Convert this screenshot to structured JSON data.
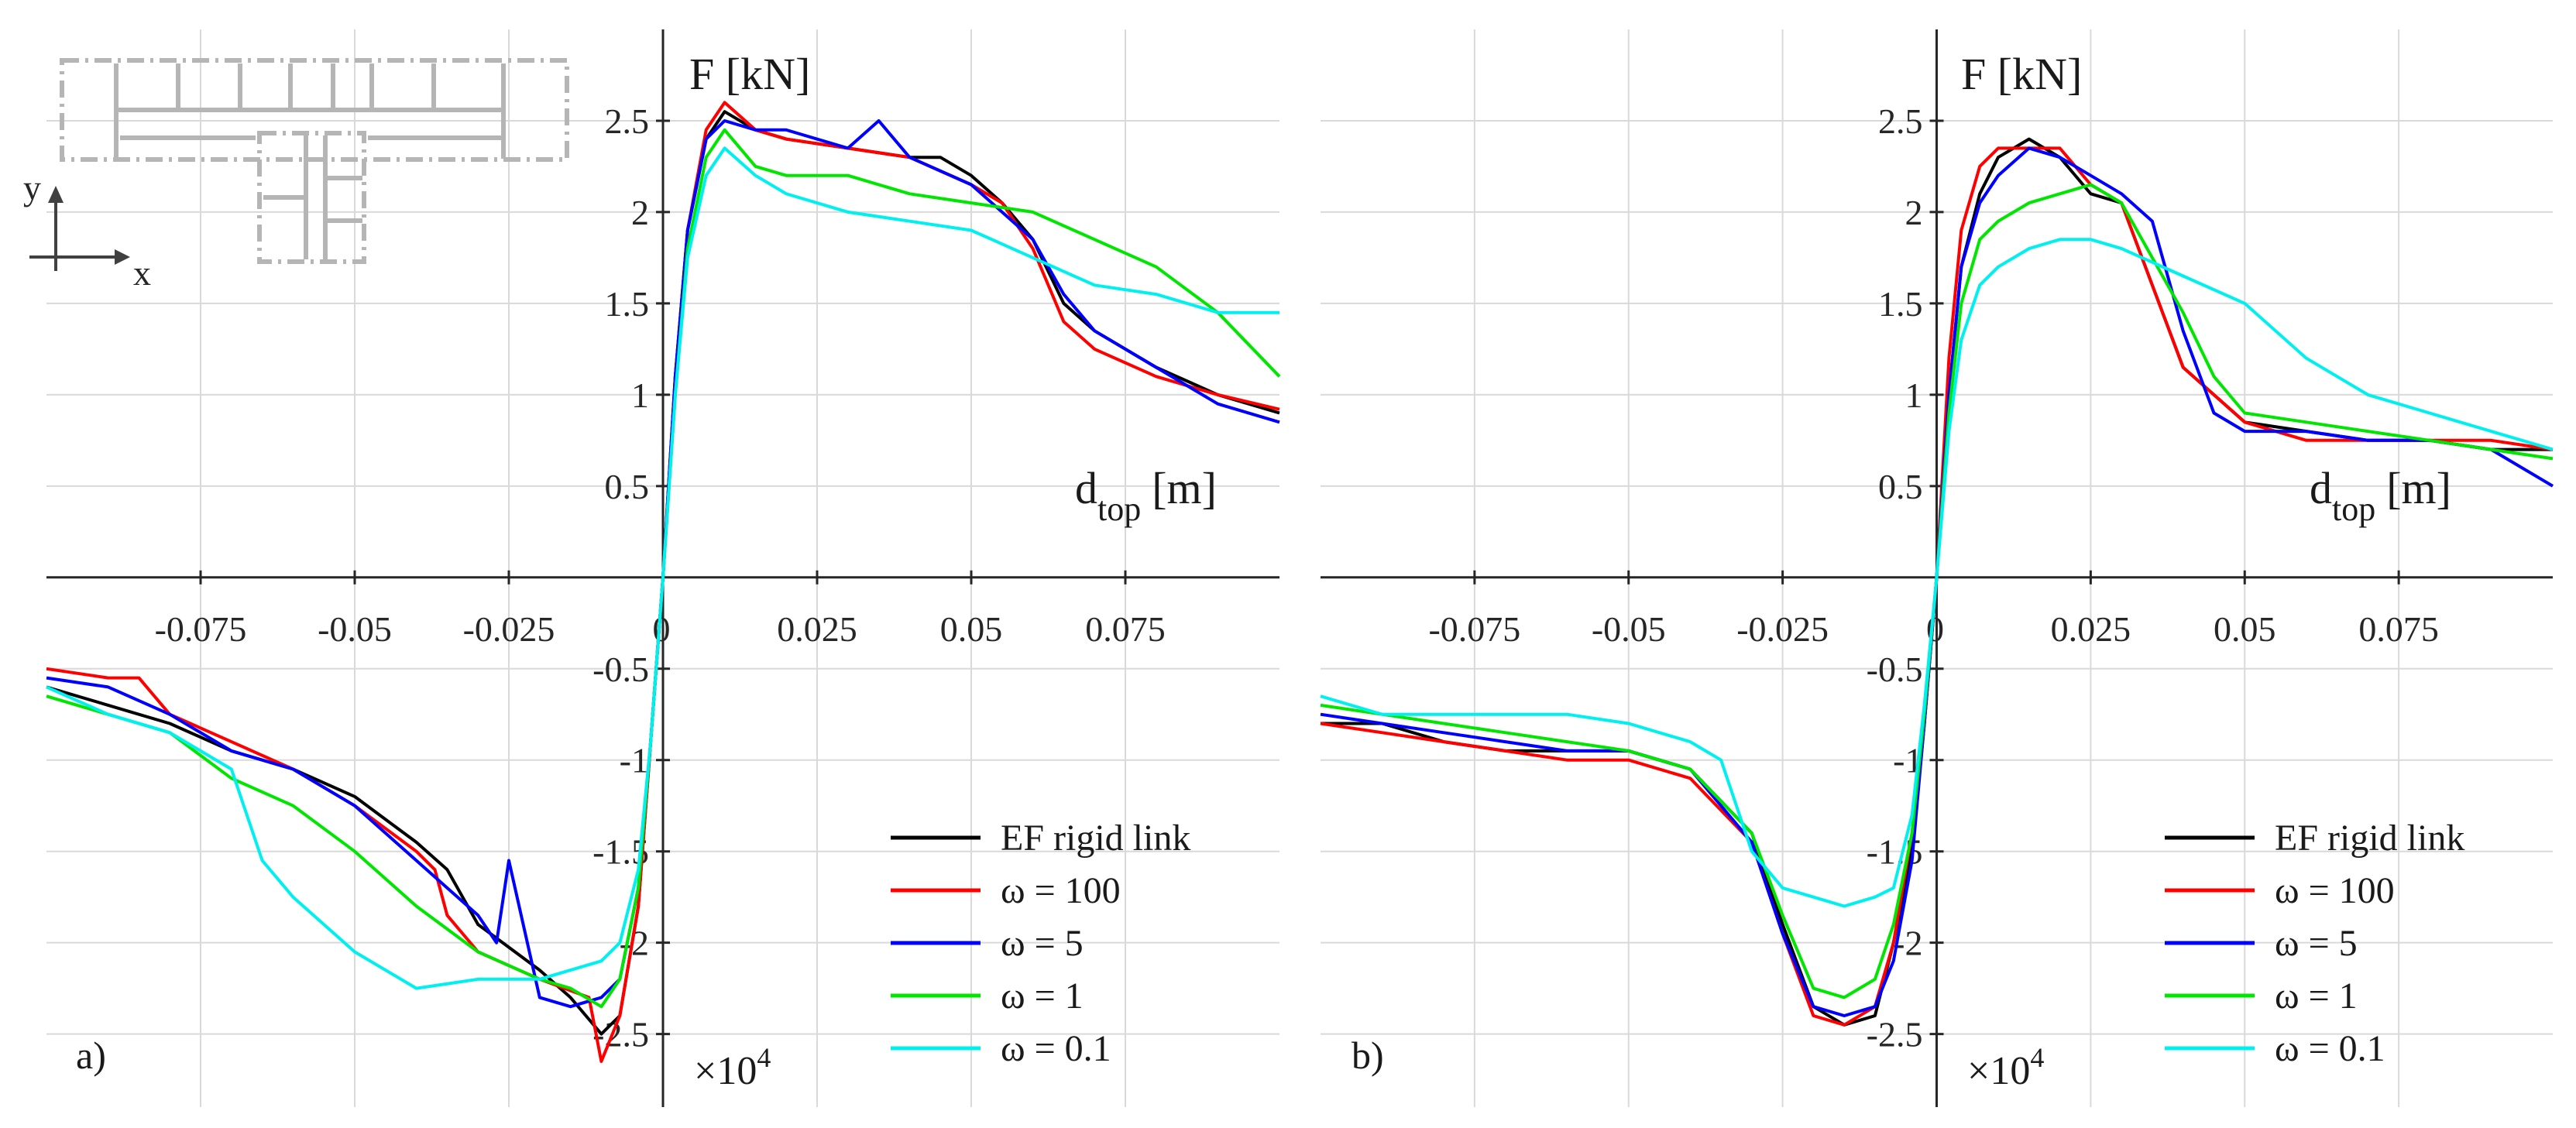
{
  "chart_data": [
    {
      "type": "line",
      "panel_label": "a)",
      "ylabel": "F [kN]",
      "xlabel_main": "d",
      "xlabel_sub": "top",
      "xlabel_unit": "[m]",
      "y_multiplier_text": "×10",
      "y_multiplier_exp": "4",
      "xlim": [
        -0.1,
        0.1
      ],
      "ylim": [
        -2.9,
        3.0
      ],
      "x_ticks": [
        -0.075,
        -0.05,
        -0.025,
        0,
        0.025,
        0.05,
        0.075
      ],
      "x_tick_labels": [
        "-0.075",
        "-0.05",
        "-0.025",
        "0",
        "0.025",
        "0.05",
        "0.075"
      ],
      "y_ticks": [
        -2.5,
        -2,
        -1.5,
        -1,
        -0.5,
        0.5,
        1,
        1.5,
        2,
        2.5
      ],
      "y_tick_labels": [
        "-2.5",
        "-2",
        "-1.5",
        "-1",
        "-0.5",
        "0.5",
        "1",
        "1.5",
        "2",
        "2.5"
      ],
      "inset_axis_labels": {
        "x": "x",
        "y": "y"
      },
      "series": [
        {
          "name": "EF rigid link",
          "color": "#000000",
          "x": [
            -0.1,
            -0.09,
            -0.08,
            -0.07,
            -0.06,
            -0.05,
            -0.04,
            -0.035,
            -0.03,
            -0.02,
            -0.015,
            -0.01,
            -0.007,
            -0.004,
            -0.002,
            0,
            0.002,
            0.004,
            0.007,
            0.01,
            0.015,
            0.02,
            0.03,
            0.04,
            0.045,
            0.05,
            0.055,
            0.06,
            0.065,
            0.07,
            0.08,
            0.09,
            0.1
          ],
          "y": [
            -0.6,
            -0.7,
            -0.8,
            -0.95,
            -1.05,
            -1.2,
            -1.45,
            -1.6,
            -1.9,
            -2.15,
            -2.3,
            -2.5,
            -2.4,
            -1.8,
            -0.9,
            0,
            1.1,
            1.9,
            2.4,
            2.55,
            2.45,
            2.4,
            2.35,
            2.3,
            2.3,
            2.2,
            2.05,
            1.85,
            1.5,
            1.35,
            1.15,
            1.0,
            0.9
          ]
        },
        {
          "name": "ω = 100",
          "color": "#ff0000",
          "x": [
            -0.1,
            -0.09,
            -0.085,
            -0.08,
            -0.07,
            -0.06,
            -0.05,
            -0.04,
            -0.037,
            -0.035,
            -0.03,
            -0.02,
            -0.012,
            -0.01,
            -0.007,
            -0.004,
            -0.002,
            0,
            0.002,
            0.004,
            0.007,
            0.01,
            0.015,
            0.02,
            0.03,
            0.04,
            0.05,
            0.055,
            0.06,
            0.065,
            0.07,
            0.08,
            0.09,
            0.1
          ],
          "y": [
            -0.5,
            -0.55,
            -0.55,
            -0.75,
            -0.9,
            -1.05,
            -1.25,
            -1.5,
            -1.6,
            -1.85,
            -2.05,
            -2.2,
            -2.3,
            -2.65,
            -2.4,
            -1.8,
            -0.9,
            0,
            1.1,
            1.9,
            2.45,
            2.6,
            2.45,
            2.4,
            2.35,
            2.3,
            2.15,
            2.05,
            1.8,
            1.4,
            1.25,
            1.1,
            1.0,
            0.92
          ]
        },
        {
          "name": "ω = 5",
          "color": "#0000ff",
          "x": [
            -0.1,
            -0.09,
            -0.08,
            -0.07,
            -0.06,
            -0.05,
            -0.04,
            -0.03,
            -0.027,
            -0.025,
            -0.02,
            -0.015,
            -0.01,
            -0.007,
            -0.004,
            -0.002,
            0,
            0.002,
            0.004,
            0.007,
            0.01,
            0.015,
            0.02,
            0.03,
            0.035,
            0.04,
            0.05,
            0.055,
            0.06,
            0.065,
            0.07,
            0.08,
            0.09,
            0.1
          ],
          "y": [
            -0.55,
            -0.6,
            -0.75,
            -0.95,
            -1.05,
            -1.25,
            -1.55,
            -1.85,
            -2.0,
            -1.55,
            -2.3,
            -2.35,
            -2.3,
            -2.2,
            -1.7,
            -0.9,
            0,
            1.1,
            1.9,
            2.4,
            2.5,
            2.45,
            2.45,
            2.35,
            2.5,
            2.3,
            2.15,
            2.0,
            1.85,
            1.55,
            1.35,
            1.15,
            0.95,
            0.85
          ]
        },
        {
          "name": "ω = 1",
          "color": "#00e600",
          "x": [
            -0.1,
            -0.09,
            -0.08,
            -0.07,
            -0.06,
            -0.05,
            -0.04,
            -0.03,
            -0.02,
            -0.015,
            -0.01,
            -0.007,
            -0.004,
            -0.002,
            0,
            0.002,
            0.004,
            0.007,
            0.01,
            0.015,
            0.02,
            0.03,
            0.04,
            0.05,
            0.06,
            0.07,
            0.08,
            0.09,
            0.1
          ],
          "y": [
            -0.65,
            -0.75,
            -0.85,
            -1.1,
            -1.25,
            -1.5,
            -1.8,
            -2.05,
            -2.2,
            -2.25,
            -2.35,
            -2.2,
            -1.7,
            -0.9,
            0,
            1.0,
            1.8,
            2.3,
            2.45,
            2.25,
            2.2,
            2.2,
            2.1,
            2.05,
            2.0,
            1.85,
            1.7,
            1.45,
            1.1
          ]
        },
        {
          "name": "ω = 0.1",
          "color": "#00f0f0",
          "x": [
            -0.1,
            -0.09,
            -0.08,
            -0.07,
            -0.065,
            -0.06,
            -0.05,
            -0.04,
            -0.03,
            -0.02,
            -0.015,
            -0.01,
            -0.007,
            -0.004,
            -0.002,
            0,
            0.002,
            0.004,
            0.007,
            0.01,
            0.015,
            0.02,
            0.03,
            0.04,
            0.05,
            0.06,
            0.07,
            0.08,
            0.09,
            0.1
          ],
          "y": [
            -0.6,
            -0.75,
            -0.85,
            -1.05,
            -1.55,
            -1.75,
            -2.05,
            -2.25,
            -2.2,
            -2.2,
            -2.15,
            -2.1,
            -2.0,
            -1.6,
            -0.9,
            0,
            1.0,
            1.75,
            2.2,
            2.35,
            2.2,
            2.1,
            2.0,
            1.95,
            1.9,
            1.75,
            1.6,
            1.55,
            1.45,
            1.45
          ]
        }
      ]
    },
    {
      "type": "line",
      "panel_label": "b)",
      "ylabel": "F [kN]",
      "xlabel_main": "d",
      "xlabel_sub": "top",
      "xlabel_unit": "[m]",
      "y_multiplier_text": "×10",
      "y_multiplier_exp": "4",
      "xlim": [
        -0.1,
        0.1
      ],
      "ylim": [
        -2.9,
        3.0
      ],
      "x_ticks": [
        -0.075,
        -0.05,
        -0.025,
        0,
        0.025,
        0.05,
        0.075
      ],
      "x_tick_labels": [
        "-0.075",
        "-0.05",
        "-0.025",
        "0",
        "0.025",
        "0.05",
        "0.075"
      ],
      "y_ticks": [
        -2.5,
        -2,
        -1.5,
        -1,
        -0.5,
        0.5,
        1,
        1.5,
        2,
        2.5
      ],
      "y_tick_labels": [
        "-2.5",
        "-2",
        "-1.5",
        "-1",
        "-0.5",
        "0.5",
        "1",
        "1.5",
        "2",
        "2.5"
      ],
      "series": [
        {
          "name": "EF rigid link",
          "color": "#000000",
          "x": [
            -0.1,
            -0.09,
            -0.08,
            -0.07,
            -0.06,
            -0.05,
            -0.04,
            -0.03,
            -0.025,
            -0.02,
            -0.015,
            -0.01,
            -0.007,
            -0.004,
            -0.002,
            0,
            0.002,
            0.004,
            0.007,
            0.01,
            0.015,
            0.02,
            0.025,
            0.03,
            0.035,
            0.04,
            0.05,
            0.06,
            0.07,
            0.08,
            0.09,
            0.1
          ],
          "y": [
            -0.8,
            -0.8,
            -0.9,
            -0.95,
            -0.95,
            -0.95,
            -1.05,
            -1.4,
            -1.9,
            -2.35,
            -2.45,
            -2.4,
            -2.0,
            -1.5,
            -0.8,
            0,
            1.0,
            1.7,
            2.1,
            2.3,
            2.4,
            2.3,
            2.1,
            2.05,
            1.6,
            1.15,
            0.85,
            0.8,
            0.75,
            0.75,
            0.7,
            0.7
          ]
        },
        {
          "name": "ω = 100",
          "color": "#ff0000",
          "x": [
            -0.1,
            -0.09,
            -0.08,
            -0.07,
            -0.06,
            -0.05,
            -0.04,
            -0.03,
            -0.025,
            -0.02,
            -0.015,
            -0.01,
            -0.007,
            -0.004,
            -0.002,
            0,
            0.002,
            0.004,
            0.007,
            0.01,
            0.015,
            0.02,
            0.025,
            0.03,
            0.035,
            0.04,
            0.05,
            0.06,
            0.07,
            0.08,
            0.09,
            0.1
          ],
          "y": [
            -0.8,
            -0.85,
            -0.9,
            -0.95,
            -1.0,
            -1.0,
            -1.1,
            -1.45,
            -1.95,
            -2.4,
            -2.45,
            -2.35,
            -2.0,
            -1.4,
            -0.8,
            0,
            1.2,
            1.9,
            2.25,
            2.35,
            2.35,
            2.35,
            2.15,
            2.05,
            1.6,
            1.15,
            0.85,
            0.75,
            0.75,
            0.75,
            0.75,
            0.7
          ]
        },
        {
          "name": "ω = 5",
          "color": "#0000ff",
          "x": [
            -0.1,
            -0.09,
            -0.08,
            -0.07,
            -0.06,
            -0.05,
            -0.04,
            -0.03,
            -0.025,
            -0.02,
            -0.015,
            -0.01,
            -0.007,
            -0.004,
            -0.002,
            0,
            0.002,
            0.004,
            0.007,
            0.01,
            0.015,
            0.02,
            0.025,
            0.03,
            0.035,
            0.04,
            0.045,
            0.05,
            0.06,
            0.07,
            0.08,
            0.09,
            0.1
          ],
          "y": [
            -0.75,
            -0.8,
            -0.85,
            -0.9,
            -0.95,
            -0.95,
            -1.05,
            -1.45,
            -1.95,
            -2.35,
            -2.4,
            -2.35,
            -2.1,
            -1.55,
            -0.8,
            0,
            1.0,
            1.7,
            2.05,
            2.2,
            2.35,
            2.3,
            2.2,
            2.1,
            1.95,
            1.35,
            0.9,
            0.8,
            0.8,
            0.75,
            0.75,
            0.7,
            0.5
          ]
        },
        {
          "name": "ω = 1",
          "color": "#00e600",
          "x": [
            -0.1,
            -0.09,
            -0.08,
            -0.07,
            -0.06,
            -0.05,
            -0.04,
            -0.03,
            -0.025,
            -0.02,
            -0.015,
            -0.01,
            -0.007,
            -0.004,
            -0.002,
            0,
            0.002,
            0.004,
            0.007,
            0.01,
            0.015,
            0.02,
            0.025,
            0.03,
            0.035,
            0.04,
            0.045,
            0.05,
            0.06,
            0.07,
            0.08,
            0.09,
            0.1
          ],
          "y": [
            -0.7,
            -0.75,
            -0.8,
            -0.85,
            -0.9,
            -0.95,
            -1.05,
            -1.4,
            -1.85,
            -2.25,
            -2.3,
            -2.2,
            -1.9,
            -1.4,
            -0.75,
            0,
            0.9,
            1.5,
            1.85,
            1.95,
            2.05,
            2.1,
            2.15,
            2.05,
            1.75,
            1.45,
            1.1,
            0.9,
            0.85,
            0.8,
            0.75,
            0.7,
            0.65
          ]
        },
        {
          "name": "ω = 0.1",
          "color": "#00f0f0",
          "x": [
            -0.1,
            -0.09,
            -0.08,
            -0.07,
            -0.06,
            -0.05,
            -0.04,
            -0.035,
            -0.03,
            -0.025,
            -0.02,
            -0.015,
            -0.01,
            -0.007,
            -0.004,
            -0.002,
            0,
            0.002,
            0.004,
            0.007,
            0.01,
            0.015,
            0.02,
            0.025,
            0.03,
            0.04,
            0.05,
            0.06,
            0.07,
            0.08,
            0.09,
            0.1
          ],
          "y": [
            -0.65,
            -0.75,
            -0.75,
            -0.75,
            -0.75,
            -0.8,
            -0.9,
            -1.0,
            -1.5,
            -1.7,
            -1.75,
            -1.8,
            -1.75,
            -1.7,
            -1.3,
            -0.7,
            0,
            0.8,
            1.3,
            1.6,
            1.7,
            1.8,
            1.85,
            1.85,
            1.8,
            1.65,
            1.5,
            1.2,
            1.0,
            0.9,
            0.8,
            0.7
          ]
        }
      ]
    }
  ]
}
